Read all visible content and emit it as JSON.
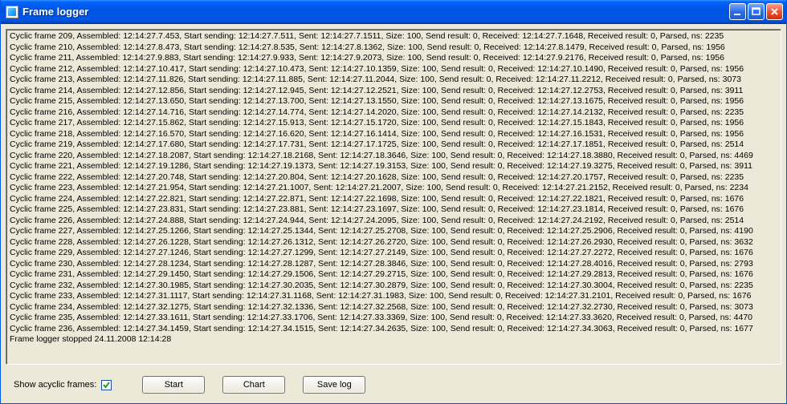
{
  "window": {
    "title": "Frame logger"
  },
  "bottom": {
    "checkbox_label": "Show acyclic frames:",
    "checkbox_checked": true,
    "buttons": {
      "start": "Start",
      "chart": "Chart",
      "save": "Save log"
    }
  },
  "log_lines": [
    "Cyclic frame 209, Assembled: 12:14:27.7.453, Start sending: 12:14:27.7.511, Sent: 12:14:27.7.1511, Size: 100, Send result: 0, Received: 12:14:27.7.1648, Received result: 0, Parsed, ns: 2235",
    "Cyclic frame 210, Assembled: 12:14:27.8.473, Start sending: 12:14:27.8.535, Sent: 12:14:27.8.1362, Size: 100, Send result: 0, Received: 12:14:27.8.1479, Received result: 0, Parsed, ns: 1956",
    "Cyclic frame 211, Assembled: 12:14:27.9.883, Start sending: 12:14:27.9.933, Sent: 12:14:27.9.2073, Size: 100, Send result: 0, Received: 12:14:27.9.2176, Received result: 0, Parsed, ns: 1956",
    "Cyclic frame 212, Assembled: 12:14:27.10.417, Start sending: 12:14:27.10.473, Sent: 12:14:27.10.1359, Size: 100, Send result: 0, Received: 12:14:27.10.1490, Received result: 0, Parsed, ns: 1956",
    "Cyclic frame 213, Assembled: 12:14:27.11.826, Start sending: 12:14:27.11.885, Sent: 12:14:27.11.2044, Size: 100, Send result: 0, Received: 12:14:27.11.2212, Received result: 0, Parsed, ns: 3073",
    "Cyclic frame 214, Assembled: 12:14:27.12.856, Start sending: 12:14:27.12.945, Sent: 12:14:27.12.2521, Size: 100, Send result: 0, Received: 12:14:27.12.2753, Received result: 0, Parsed, ns: 3911",
    "Cyclic frame 215, Assembled: 12:14:27.13.650, Start sending: 12:14:27.13.700, Sent: 12:14:27.13.1550, Size: 100, Send result: 0, Received: 12:14:27.13.1675, Received result: 0, Parsed, ns: 1956",
    "Cyclic frame 216, Assembled: 12:14:27.14.716, Start sending: 12:14:27.14.774, Sent: 12:14:27.14.2020, Size: 100, Send result: 0, Received: 12:14:27.14.2132, Received result: 0, Parsed, ns: 2235",
    "Cyclic frame 217, Assembled: 12:14:27.15.862, Start sending: 12:14:27.15.913, Sent: 12:14:27.15.1720, Size: 100, Send result: 0, Received: 12:14:27.15.1843, Received result: 0, Parsed, ns: 1956",
    "Cyclic frame 218, Assembled: 12:14:27.16.570, Start sending: 12:14:27.16.620, Sent: 12:14:27.16.1414, Size: 100, Send result: 0, Received: 12:14:27.16.1531, Received result: 0, Parsed, ns: 1956",
    "Cyclic frame 219, Assembled: 12:14:27.17.680, Start sending: 12:14:27.17.731, Sent: 12:14:27.17.1725, Size: 100, Send result: 0, Received: 12:14:27.17.1851, Received result: 0, Parsed, ns: 2514",
    "Cyclic frame 220, Assembled: 12:14:27.18.2087, Start sending: 12:14:27.18.2168, Sent: 12:14:27.18.3646, Size: 100, Send result: 0, Received: 12:14:27.18.3880, Received result: 0, Parsed, ns: 4469",
    "Cyclic frame 221, Assembled: 12:14:27.19.1286, Start sending: 12:14:27.19.1373, Sent: 12:14:27.19.3153, Size: 100, Send result: 0, Received: 12:14:27.19.3275, Received result: 0, Parsed, ns: 3911",
    "Cyclic frame 222, Assembled: 12:14:27.20.748, Start sending: 12:14:27.20.804, Sent: 12:14:27.20.1628, Size: 100, Send result: 0, Received: 12:14:27.20.1757, Received result: 0, Parsed, ns: 2235",
    "Cyclic frame 223, Assembled: 12:14:27.21.954, Start sending: 12:14:27.21.1007, Sent: 12:14:27.21.2007, Size: 100, Send result: 0, Received: 12:14:27.21.2152, Received result: 0, Parsed, ns: 2234",
    "Cyclic frame 224, Assembled: 12:14:27.22.821, Start sending: 12:14:27.22.871, Sent: 12:14:27.22.1698, Size: 100, Send result: 0, Received: 12:14:27.22.1821, Received result: 0, Parsed, ns: 1676",
    "Cyclic frame 225, Assembled: 12:14:27.23.831, Start sending: 12:14:27.23.881, Sent: 12:14:27.23.1697, Size: 100, Send result: 0, Received: 12:14:27.23.1814, Received result: 0, Parsed, ns: 1676",
    "Cyclic frame 226, Assembled: 12:14:27.24.888, Start sending: 12:14:27.24.944, Sent: 12:14:27.24.2095, Size: 100, Send result: 0, Received: 12:14:27.24.2192, Received result: 0, Parsed, ns: 2514",
    "Cyclic frame 227, Assembled: 12:14:27.25.1266, Start sending: 12:14:27.25.1344, Sent: 12:14:27.25.2708, Size: 100, Send result: 0, Received: 12:14:27.25.2906, Received result: 0, Parsed, ns: 4190",
    "Cyclic frame 228, Assembled: 12:14:27.26.1228, Start sending: 12:14:27.26.1312, Sent: 12:14:27.26.2720, Size: 100, Send result: 0, Received: 12:14:27.26.2930, Received result: 0, Parsed, ns: 3632",
    "Cyclic frame 229, Assembled: 12:14:27.27.1246, Start sending: 12:14:27.27.1299, Sent: 12:14:27.27.2149, Size: 100, Send result: 0, Received: 12:14:27.27.2272, Received result: 0, Parsed, ns: 1676",
    "Cyclic frame 230, Assembled: 12:14:27.28.1234, Start sending: 12:14:27.28.1287, Sent: 12:14:27.28.3846, Size: 100, Send result: 0, Received: 12:14:27.28.4016, Received result: 0, Parsed, ns: 2793",
    "Cyclic frame 231, Assembled: 12:14:27.29.1450, Start sending: 12:14:27.29.1506, Sent: 12:14:27.29.2715, Size: 100, Send result: 0, Received: 12:14:27.29.2813, Received result: 0, Parsed, ns: 1676",
    "Cyclic frame 232, Assembled: 12:14:27.30.1985, Start sending: 12:14:27.30.2035, Sent: 12:14:27.30.2879, Size: 100, Send result: 0, Received: 12:14:27.30.3004, Received result: 0, Parsed, ns: 2235",
    "Cyclic frame 233, Assembled: 12:14:27.31.1117, Start sending: 12:14:27.31.1168, Sent: 12:14:27.31.1983, Size: 100, Send result: 0, Received: 12:14:27.31.2101, Received result: 0, Parsed, ns: 1676",
    "Cyclic frame 234, Assembled: 12:14:27.32.1275, Start sending: 12:14:27.32.1336, Sent: 12:14:27.32.2568, Size: 100, Send result: 0, Received: 12:14:27.32.2730, Received result: 0, Parsed, ns: 3073",
    "Cyclic frame 235, Assembled: 12:14:27.33.1611, Start sending: 12:14:27.33.1706, Sent: 12:14:27.33.3369, Size: 100, Send result: 0, Received: 12:14:27.33.3620, Received result: 0, Parsed, ns: 4470",
    "Cyclic frame 236, Assembled: 12:14:27.34.1459, Start sending: 12:14:27.34.1515, Sent: 12:14:27.34.2635, Size: 100, Send result: 0, Received: 12:14:27.34.3063, Received result: 0, Parsed, ns: 1677",
    "Frame logger stopped 24.11.2008 12:14:28"
  ]
}
